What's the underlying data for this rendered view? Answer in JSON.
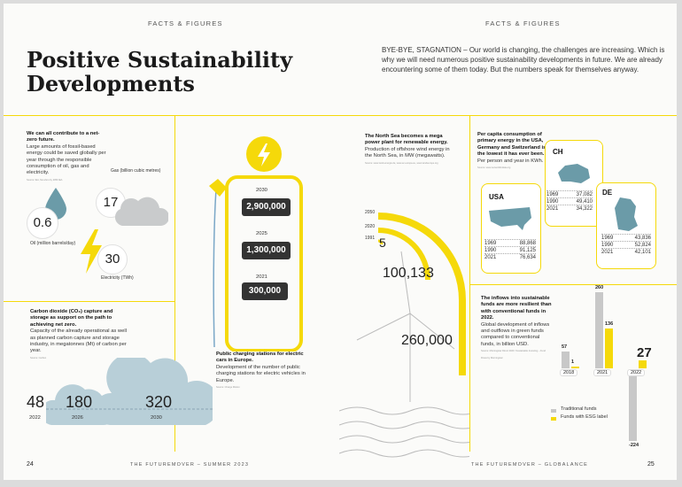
{
  "header": {
    "left": "FACTS & FIGURES",
    "right": "FACTS & FIGURES"
  },
  "title": {
    "line1": "Positive Sustainability",
    "line2": "Developments"
  },
  "intro": "BYE-BYE, STAGNATION – Our world is changing, the challenges are increasing. Which is why we will need numerous positive sustainability developments in future. We are already encountering some of them today. But the numbers speak for themselves anyway.",
  "netzero": {
    "heading": "We can all contribute to a net-zero future.",
    "body": "Large amounts of fossil-based energy could be saved globally per year through the responsible consumption of oil, gas and electricity.",
    "source": "Source: IEA, Net-Zero by 2050 IEA",
    "oil_value": "0.6",
    "oil_label": "Oil (million barrels/day)",
    "gas_value": "17",
    "gas_label": "Gas (billion cubic metres)",
    "elec_value": "30",
    "elec_label": "Electricity (TWh)"
  },
  "co2": {
    "heading": "Carbon dioxide (CO₂) capture and storage as support on the path to achieving net zero.",
    "body": "Capacity of the already operational as well as planned carbon capture and storage industry, in megatonnes (Mt) of carbon per year.",
    "source": "Source: Carbon",
    "values": [
      "48",
      "180",
      "320"
    ],
    "years": [
      "2022",
      "2026",
      "2030"
    ]
  },
  "charging": {
    "heading": "Public charging stations for electric cars in Europe.",
    "body": "Development of the number of public charging stations for electric vehicles in Europe.",
    "source": "Source: Charge Motion",
    "years": [
      "2030",
      "2025",
      "2021"
    ],
    "values": [
      "2,900,000",
      "1,300,000",
      "300,000"
    ]
  },
  "wind": {
    "heading": "The North Sea becomes a mega power plant for renewable energy.",
    "body": "Production of offshore wind energy in the North Sea, in MW (megawatts).",
    "source": "Source: www.wind-energie.de, www.ec.europa.eu, www.windeurope.org",
    "years": [
      "2050",
      "2020",
      "1991"
    ],
    "values": [
      "260,000",
      "100,133",
      "5"
    ]
  },
  "energy": {
    "heading": "Per capita consumption of primary energy in the USA, Germany and Switzerland is the lowest it has ever been.",
    "body": "Per person and year in KWh.",
    "source": "Source: www.ourworldindata.org",
    "ch": {
      "label": "CH",
      "rows": [
        [
          "1969",
          "37,082"
        ],
        [
          "1990",
          "49,410"
        ],
        [
          "2021",
          "34,322"
        ]
      ]
    },
    "usa": {
      "label": "USA",
      "rows": [
        [
          "1969",
          "88,868"
        ],
        [
          "1990",
          "91,125"
        ],
        [
          "2021",
          "76,634"
        ]
      ]
    },
    "de": {
      "label": "DE",
      "rows": [
        [
          "1969",
          "43,836"
        ],
        [
          "1990",
          "52,824"
        ],
        [
          "2021",
          "42,101"
        ]
      ]
    }
  },
  "funds": {
    "heading": "The inflows into sustainable funds are more resilient than with conventional funds in 2022.",
    "body": "Global development of inflows and outflows in green funds compared to conventional funds, in billion USD.",
    "source": "Source: Morningstar Direct 2023 / Sustainable Investing – Fund Flows by Morningstar",
    "legend_traditional": "Traditional funds",
    "legend_esg": "Funds with ESG label",
    "color_traditional": "#c8c8c8",
    "color_esg": "#f5d90a"
  },
  "chart_data": {
    "type": "bar",
    "categories": [
      "2018",
      "2021",
      "2022"
    ],
    "series": [
      {
        "name": "Traditional funds",
        "values": [
          57,
          260,
          -224
        ]
      },
      {
        "name": "Funds with ESG label",
        "values": [
          1,
          136,
          27
        ]
      }
    ],
    "ylim": [
      -240,
      270
    ]
  },
  "footer": {
    "left_page": "24",
    "left_text": "THE FUTUREMOVER – SUMMER 2023",
    "right_text": "THE FUTUREMOVER – GLOBALANCE",
    "right_page": "25"
  }
}
